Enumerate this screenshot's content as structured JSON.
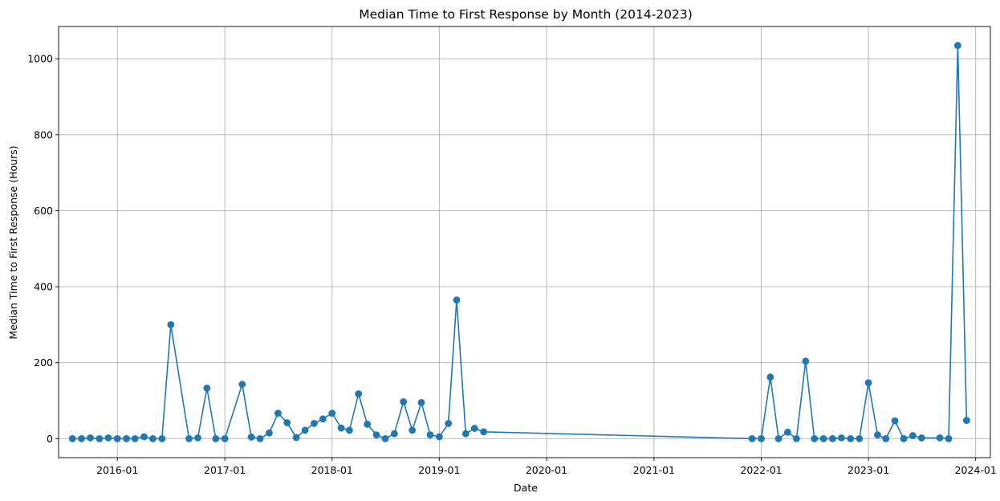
{
  "chart_data": {
    "type": "line",
    "title": "Median Time to First Response by Month (2014-2023)",
    "xlabel": "Date",
    "ylabel": "Median Time to First Response (Hours)",
    "color": "#1f77b4",
    "grid": true,
    "marker": "circle",
    "xlim": [
      "2015-06-15",
      "2024-02-20"
    ],
    "ylim": [
      -50,
      1085
    ],
    "x_ticks": [
      "2016-01",
      "2017-01",
      "2018-01",
      "2019-01",
      "2020-01",
      "2021-01",
      "2022-01",
      "2023-01",
      "2024-01"
    ],
    "y_ticks": [
      0,
      200,
      400,
      600,
      800,
      1000
    ],
    "series": [
      {
        "x": [
          "2015-08",
          "2015-09",
          "2015-10",
          "2015-11",
          "2015-12",
          "2016-01",
          "2016-02",
          "2016-03",
          "2016-04",
          "2016-05",
          "2016-06",
          "2016-07",
          "2016-09",
          "2016-10",
          "2016-11",
          "2016-12",
          "2017-01",
          "2017-03",
          "2017-04",
          "2017-05",
          "2017-06",
          "2017-07",
          "2017-08",
          "2017-09",
          "2017-10",
          "2017-11",
          "2017-12",
          "2018-01",
          "2018-02",
          "2018-03",
          "2018-04",
          "2018-05",
          "2018-06",
          "2018-07",
          "2018-08",
          "2018-09",
          "2018-10",
          "2018-11",
          "2018-12",
          "2019-01",
          "2019-02",
          "2019-03",
          "2019-04",
          "2019-05",
          "2019-06",
          "2021-12",
          "2022-01",
          "2022-02",
          "2022-03",
          "2022-04",
          "2022-05",
          "2022-06",
          "2022-07",
          "2022-08",
          "2022-09",
          "2022-10",
          "2022-11",
          "2022-12",
          "2023-01",
          "2023-02",
          "2023-03",
          "2023-04",
          "2023-05",
          "2023-06",
          "2023-07",
          "2023-09",
          "2023-10",
          "2023-11",
          "2023-12"
        ],
        "values": [
          0,
          0,
          2,
          0,
          2,
          0,
          0,
          0,
          5,
          0,
          0,
          300,
          0,
          2,
          133,
          0,
          0,
          143,
          4,
          0,
          15,
          67,
          42,
          3,
          22,
          40,
          52,
          67,
          28,
          22,
          118,
          38,
          10,
          0,
          13,
          97,
          22,
          95,
          10,
          5,
          40,
          365,
          13,
          27,
          18,
          0,
          0,
          162,
          0,
          17,
          0,
          204,
          0,
          0,
          0,
          2,
          0,
          0,
          147,
          10,
          0,
          47,
          0,
          8,
          2,
          2,
          0,
          1035,
          48
        ]
      }
    ]
  }
}
